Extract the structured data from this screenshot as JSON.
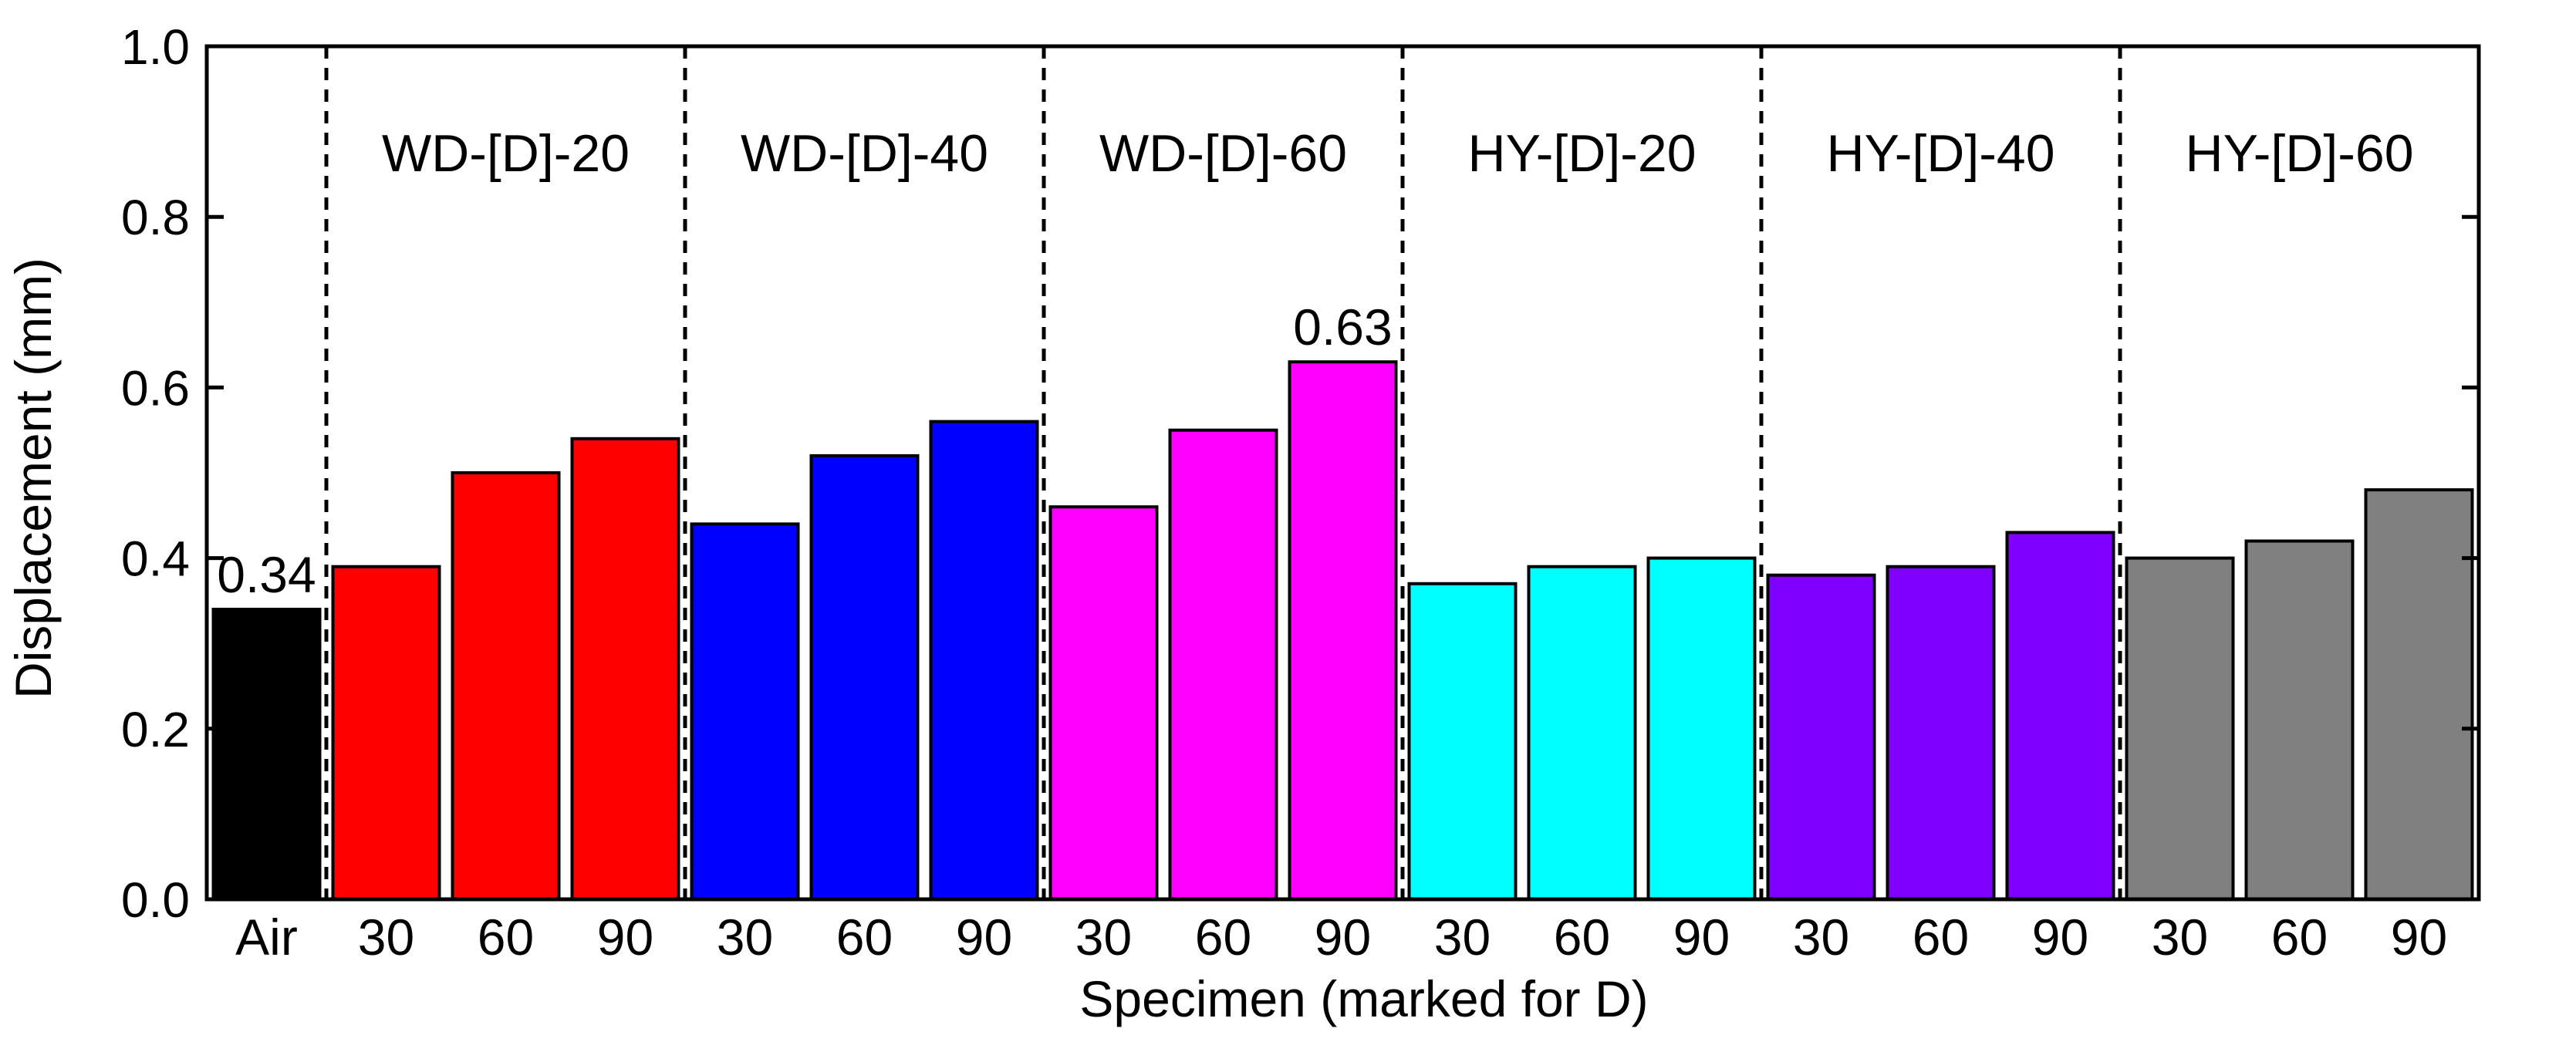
{
  "chart_data": {
    "type": "bar",
    "xlabel": "Specimen (marked for D)",
    "ylabel": "Displacement (mm)",
    "ylim": [
      0,
      1.0
    ],
    "yticks": [
      0.0,
      0.2,
      0.4,
      0.6,
      0.8,
      1.0
    ],
    "ytick_labels": [
      "0.0",
      "0.2",
      "0.4",
      "0.6",
      "0.8",
      "1.0"
    ],
    "categories": [
      "Air",
      "30",
      "60",
      "90",
      "30",
      "60",
      "90",
      "30",
      "60",
      "90",
      "30",
      "60",
      "90",
      "30",
      "60",
      "90",
      "30",
      "60",
      "90"
    ],
    "values": [
      0.34,
      0.39,
      0.5,
      0.54,
      0.44,
      0.52,
      0.56,
      0.46,
      0.55,
      0.63,
      0.37,
      0.39,
      0.4,
      0.38,
      0.39,
      0.43,
      0.4,
      0.42,
      0.48
    ],
    "bar_colors": [
      "#000000",
      "#ff0000",
      "#ff0000",
      "#ff0000",
      "#0000ff",
      "#0000ff",
      "#0000ff",
      "#ff00ff",
      "#ff00ff",
      "#ff00ff",
      "#00ffff",
      "#00ffff",
      "#00ffff",
      "#8000ff",
      "#8000ff",
      "#8000ff",
      "#808080",
      "#808080",
      "#808080"
    ],
    "groups": [
      {
        "label": "WD-[D]-20",
        "start": 1,
        "end": 3
      },
      {
        "label": "WD-[D]-40",
        "start": 4,
        "end": 6
      },
      {
        "label": "WD-[D]-60",
        "start": 7,
        "end": 9
      },
      {
        "label": "HY-[D]-20",
        "start": 10,
        "end": 12
      },
      {
        "label": "HY-[D]-40",
        "start": 13,
        "end": 15
      },
      {
        "label": "HY-[D]-60",
        "start": 16,
        "end": 18
      }
    ],
    "data_labels": [
      {
        "index": 0,
        "text": "0.34"
      },
      {
        "index": 9,
        "text": "0.63"
      }
    ]
  }
}
